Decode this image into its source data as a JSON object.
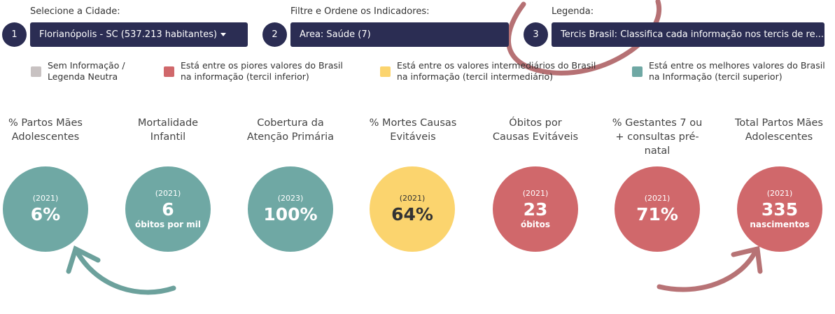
{
  "colors": {
    "navy": "#2b2d53",
    "neutral": "#c8c2c2",
    "worst": "#d0686b",
    "middle": "#fbd46e",
    "best": "#6fa8a4"
  },
  "filters": {
    "city": {
      "number": "1",
      "label": "Selecione a Cidade:",
      "value": "Florianópolis - SC (537.213 habitantes)"
    },
    "area": {
      "number": "2",
      "label": "Filtre e Ordene os Indicadores:",
      "value": "Área: Saúde (7)"
    },
    "legend": {
      "number": "3",
      "label": "Legenda:",
      "value": "Tercis Brasil: Classifica cada informação nos tercis de re..."
    }
  },
  "legend_items": [
    {
      "line1": "Sem Informação /",
      "line2": "Legenda Neutra"
    },
    {
      "line1": "Está entre os piores valores do Brasil",
      "line2": "na informação (tercil inferior)"
    },
    {
      "line1": "Está entre os valores intermediários do Brasil",
      "line2": "na informação (tercil intermediário)"
    },
    {
      "line1": "Está entre os melhores valores do Brasil",
      "line2": "na Informação (tercil superior)"
    }
  ],
  "indicators": [
    {
      "title": "% Partos Mães Adolescentes",
      "year": "(2021)",
      "value": "6%",
      "unit": "",
      "tercile": "best"
    },
    {
      "title": "Mortalidade Infantil",
      "year": "(2021)",
      "value": "6",
      "unit": "óbitos por mil",
      "tercile": "best"
    },
    {
      "title": "Cobertura da Atenção Primária",
      "year": "(2023)",
      "value": "100%",
      "unit": "",
      "tercile": "best"
    },
    {
      "title": "% Mortes Causas Evitáveis",
      "year": "(2021)",
      "value": "64%",
      "unit": "",
      "tercile": "middle"
    },
    {
      "title": "Óbitos por Causas Evitáveis",
      "year": "(2021)",
      "value": "23",
      "unit": "óbitos",
      "tercile": "worst"
    },
    {
      "title": "% Gestantes 7 ou + consultas pré-natal",
      "year": "(2021)",
      "value": "71%",
      "unit": "",
      "tercile": "worst"
    },
    {
      "title": "Total Partos Mães Adolescentes",
      "year": "(2021)",
      "value": "335",
      "unit": "nascimentos",
      "tercile": "worst"
    }
  ]
}
